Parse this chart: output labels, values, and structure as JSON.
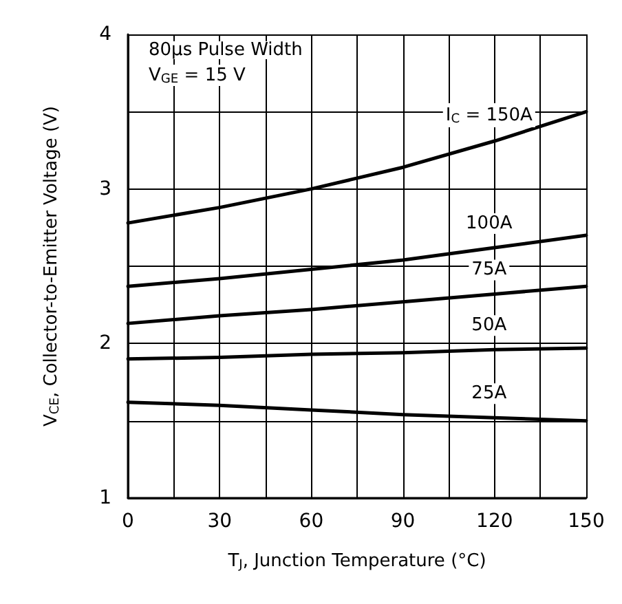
{
  "chart_data": {
    "type": "line",
    "xlabel": "T$_{J}$, Junction Temperature (°C)",
    "ylabel": "V$_{CE}$, Collector-to-Emitter Voltage (V)",
    "annotations": [
      "80µs Pulse Width",
      "V$_{GE}$ = 15 V"
    ],
    "x": [
      0,
      30,
      60,
      90,
      120,
      150
    ],
    "series": [
      {
        "name": "I$_{C}$ = 150A",
        "color": "#000000",
        "values": [
          2.78,
          2.88,
          3.0,
          3.14,
          3.31,
          3.5
        ]
      },
      {
        "name": "100A",
        "color": "#000000",
        "values": [
          2.37,
          2.42,
          2.48,
          2.54,
          2.62,
          2.7
        ]
      },
      {
        "name": "75A",
        "color": "#000000",
        "values": [
          2.13,
          2.18,
          2.22,
          2.27,
          2.32,
          2.37
        ]
      },
      {
        "name": "50A",
        "color": "#000000",
        "values": [
          1.9,
          1.91,
          1.93,
          1.94,
          1.96,
          1.97
        ]
      },
      {
        "name": "25A",
        "color": "#000000",
        "values": [
          1.62,
          1.6,
          1.57,
          1.54,
          1.52,
          1.5
        ]
      }
    ],
    "xlim": [
      0,
      150
    ],
    "xticks": [
      0,
      {
        "value": 15,
        "label": null
      },
      30,
      {
        "value": 45,
        "label": null
      },
      60,
      {
        "value": 75,
        "label": null
      },
      90,
      {
        "value": 105,
        "label": null
      },
      120,
      {
        "value": 135,
        "label": null
      },
      150
    ],
    "ylim": [
      1,
      4
    ],
    "yticks": [
      1,
      {
        "value": 1.5,
        "label": null
      },
      2,
      {
        "value": 2.5,
        "label": null
      },
      3,
      {
        "value": 3.5,
        "label": null
      },
      4
    ],
    "grid": true,
    "legend": false,
    "marker": "none",
    "line_style": "solid"
  }
}
